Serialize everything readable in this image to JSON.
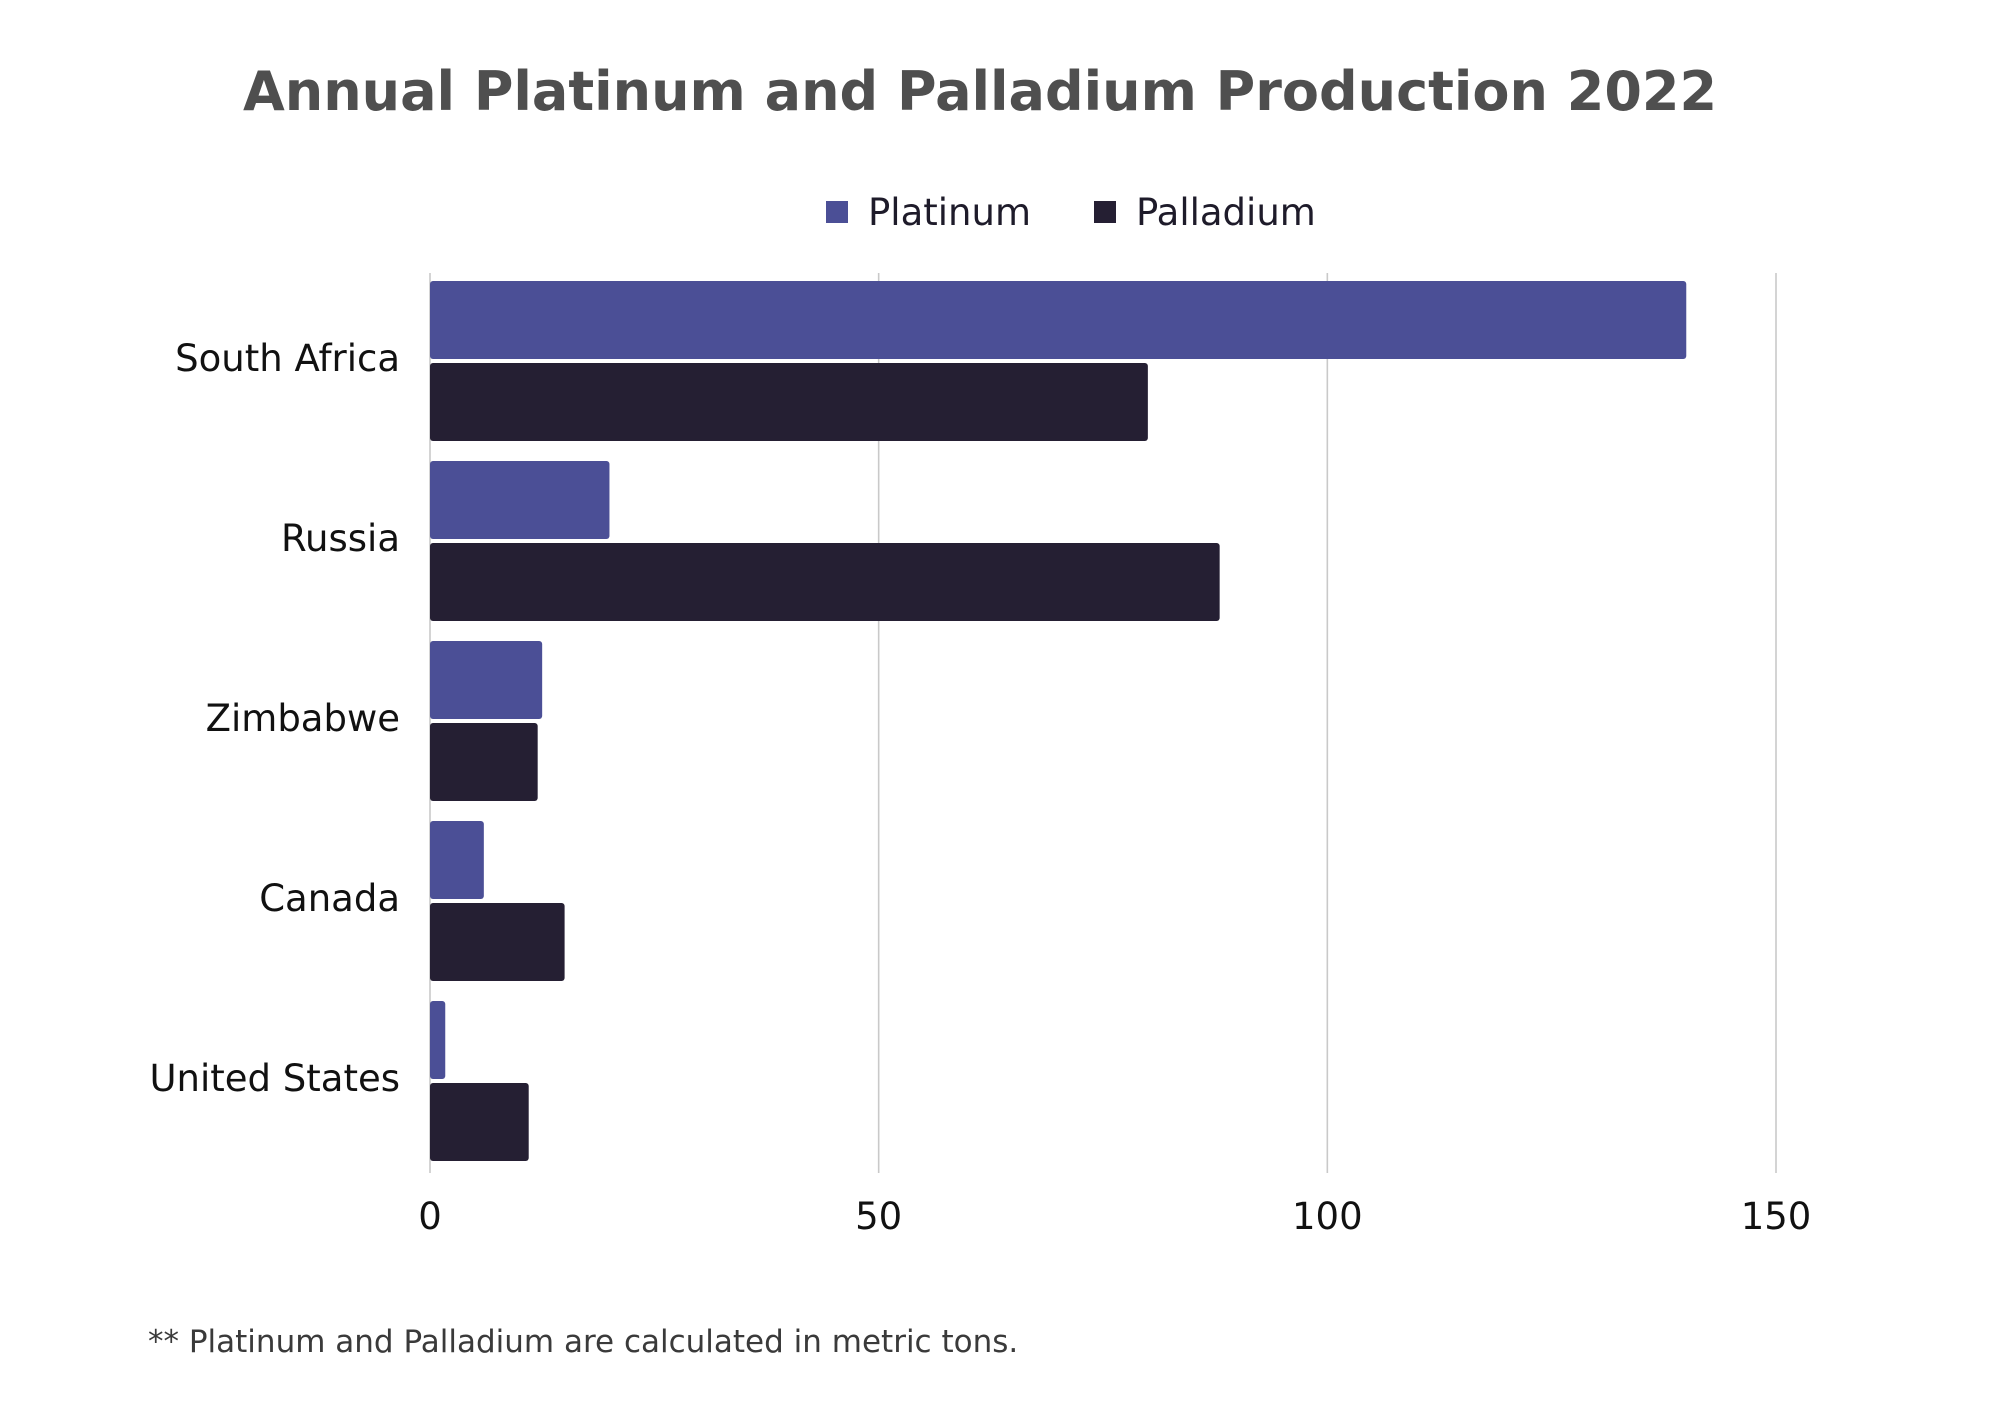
{
  "chart_data": {
    "type": "bar",
    "orientation": "horizontal",
    "title": "Annual Platinum and Palladium Production 2022",
    "categories": [
      "South Africa",
      "Russia",
      "Zimbabwe",
      "Canada",
      "United States"
    ],
    "series": [
      {
        "name": "Platinum",
        "color": "#4b4f96",
        "values": [
          140,
          20,
          12.5,
          6,
          1.7
        ]
      },
      {
        "name": "Palladium",
        "color": "#251f33",
        "values": [
          80,
          88,
          12,
          15,
          11
        ]
      }
    ],
    "xlim": [
      0,
      150
    ],
    "xticks": [
      "0",
      "50",
      "100",
      "150"
    ],
    "grid": true,
    "legend_position": "top-center",
    "xlabel": "",
    "ylabel": "",
    "footnote": "** Platinum and Palladium are calculated in metric tons."
  }
}
